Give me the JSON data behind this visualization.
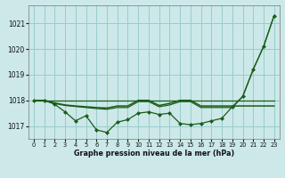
{
  "bg_color": "#cce8e8",
  "grid_color": "#99cccc",
  "line_color": "#1a5c1a",
  "xlabel": "Graphe pression niveau de la mer (hPa)",
  "ylim": [
    1016.5,
    1021.7
  ],
  "xlim": [
    -0.5,
    23.5
  ],
  "yticks": [
    1017,
    1018,
    1019,
    1020,
    1021
  ],
  "xticks": [
    0,
    1,
    2,
    3,
    4,
    5,
    6,
    7,
    8,
    9,
    10,
    11,
    12,
    13,
    14,
    15,
    16,
    17,
    18,
    19,
    20,
    21,
    22,
    23
  ],
  "s1_y": [
    1018.0,
    1018.0,
    1017.85,
    1017.55,
    1017.2,
    1017.4,
    1016.85,
    1016.75,
    1017.15,
    1017.25,
    1017.5,
    1017.55,
    1017.45,
    1017.5,
    1017.1,
    1017.05,
    1017.1,
    1017.2,
    1017.3,
    1017.75,
    1018.15,
    1019.2,
    1020.1,
    1021.3
  ],
  "s2_y": [
    1018.0,
    1018.0,
    1017.9,
    1017.82,
    1017.78,
    1017.75,
    1017.72,
    1017.7,
    1017.78,
    1017.78,
    1018.0,
    1018.0,
    1017.8,
    1017.88,
    1018.0,
    1018.0,
    1017.78,
    1017.78,
    1017.78,
    1017.78,
    1017.78,
    1017.78,
    1017.78,
    1017.78
  ],
  "s3_y": [
    1018.0,
    1018.0,
    1017.88,
    1017.8,
    1017.76,
    1017.72,
    1017.68,
    1017.65,
    1017.72,
    1017.72,
    1017.95,
    1017.95,
    1017.75,
    1017.82,
    1017.95,
    1017.95,
    1017.72,
    1017.72,
    1017.72,
    1017.72,
    1018.15,
    1019.2,
    1020.1,
    1021.3
  ],
  "s4_y": 1018.0
}
